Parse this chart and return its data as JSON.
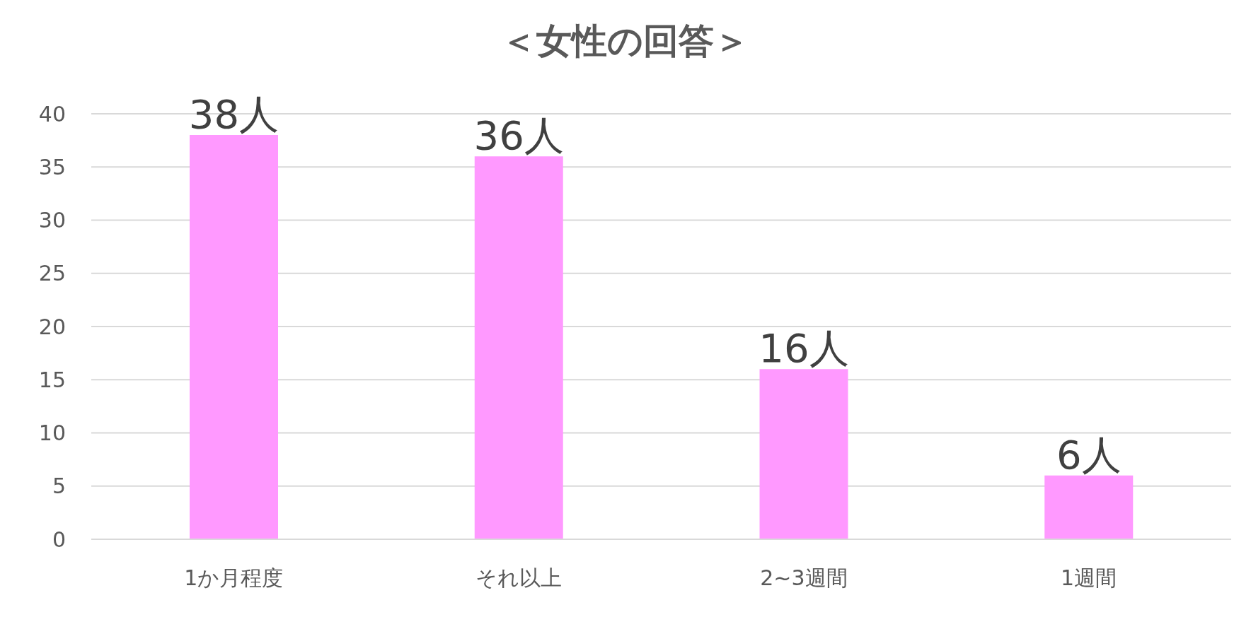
{
  "chart_data": {
    "type": "bar",
    "title": "＜女性の回答＞",
    "categories": [
      "1か月程度",
      "それ以上",
      "2~3週間",
      "1週間"
    ],
    "values": [
      38,
      36,
      16,
      6
    ],
    "value_labels": [
      "38人",
      "36人",
      "16人",
      "6人"
    ],
    "color": "#ff99ff",
    "ylim": [
      0,
      40
    ],
    "yticks": [
      0,
      5,
      10,
      15,
      20,
      25,
      30,
      35,
      40
    ],
    "grid": "y"
  }
}
